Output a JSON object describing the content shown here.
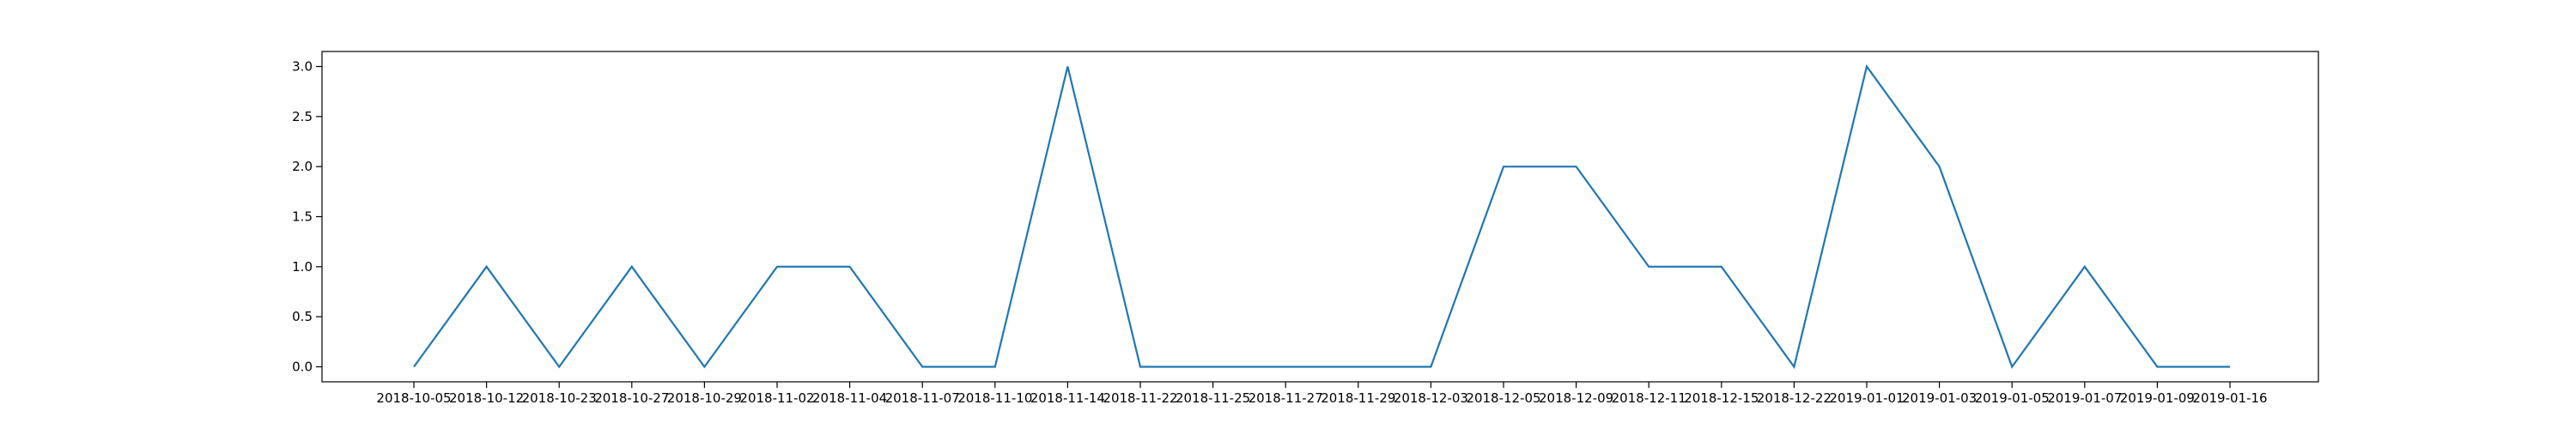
{
  "chart_data": {
    "type": "line",
    "title": "",
    "xlabel": "",
    "ylabel": "",
    "categories": [
      "2018-10-05",
      "2018-10-12",
      "2018-10-23",
      "2018-10-27",
      "2018-10-29",
      "2018-11-02",
      "2018-11-04",
      "2018-11-07",
      "2018-11-10",
      "2018-11-14",
      "2018-11-22",
      "2018-11-25",
      "2018-11-27",
      "2018-11-29",
      "2018-12-03",
      "2018-12-05",
      "2018-12-09",
      "2018-12-11",
      "2018-12-15",
      "2018-12-22",
      "2019-01-01",
      "2019-01-03",
      "2019-01-05",
      "2019-01-07",
      "2019-01-09",
      "2019-01-16"
    ],
    "series": [
      {
        "values": [
          0,
          1,
          0,
          1,
          0,
          1,
          1,
          0,
          0,
          3,
          0,
          0,
          0,
          0,
          0,
          2,
          2,
          1,
          1,
          0,
          3,
          2,
          0,
          1,
          0,
          0
        ],
        "color": "#1f77b4"
      }
    ],
    "yticks": [
      "0.0",
      "0.5",
      "1.0",
      "1.5",
      "2.0",
      "2.5",
      "3.0"
    ],
    "ylim": [
      -0.15,
      3.15
    ],
    "grid": false,
    "legend": "none"
  }
}
